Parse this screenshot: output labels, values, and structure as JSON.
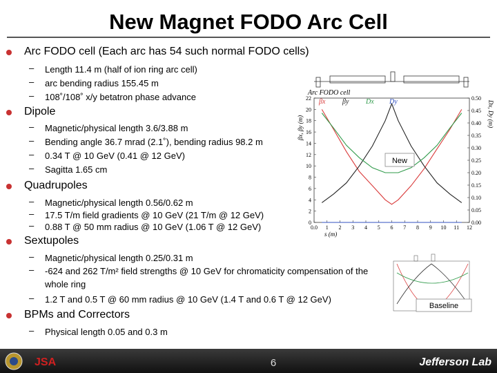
{
  "title": "New Magnet FODO Arc Cell",
  "bullets": [
    {
      "text": "Arc FODO cell (Each arc has 54 such normal FODO cells)",
      "items": [
        "Length 11.4 m (half of ion ring arc cell)",
        "arc bending radius 155.45 m",
        "108˚/108˚ x/y betatron phase advance"
      ]
    },
    {
      "text": "Dipole",
      "items": [
        "Magnetic/physical length 3.6/3.88 m",
        "Bending angle 36.7 mrad (2.1˚), bending radius 98.2 m",
        "0.34 T @ 10 GeV (0.41 @ 12 GeV)",
        "Sagitta 1.65 cm"
      ]
    },
    {
      "text": "Quadrupoles",
      "items": [
        "Magnetic/physical length 0.56/0.62 m",
        "17.5 T/m field gradients @ 10 GeV (21 T/m @ 12 GeV)",
        "0.88 T @ 50 mm radius @ 10 GeV (1.06 T @ 12 GeV)"
      ]
    },
    {
      "text": "Sextupoles",
      "items": [
        "Magnetic/physical length 0.25/0.31 m",
        "-624 and 262 T/m² field strengths @ 10 GeV for chromaticity compensation of the whole ring",
        "1.2 T and 0.5 T @ 60 mm radius @ 10 GeV (1.4 T and 0.6 T @ 12 GeV)"
      ]
    },
    {
      "text": "BPMs and Correctors",
      "items": [
        "Physical length 0.05 and 0.3 m"
      ]
    }
  ],
  "figure": {
    "type": "line",
    "title": "Arc FODO cell",
    "x_label": "s (m)",
    "y_label": "βx, βy (m)",
    "y2_label": "Dx, Dy (m)",
    "badge": "New",
    "x": [
      0.6,
      1.5,
      2.5,
      3.5,
      4.5,
      5.5,
      6,
      6.5,
      7.5,
      8.5,
      9.5,
      10.5,
      11.4
    ],
    "series": [
      {
        "name": "βx",
        "color": "#d93a3a",
        "values": [
          20,
          16.5,
          12.5,
          9,
          6.5,
          4,
          3.2,
          4,
          6.5,
          9.5,
          13,
          16.5,
          20
        ]
      },
      {
        "name": "βy",
        "color": "#222222",
        "values": [
          3.5,
          5,
          7,
          10,
          13.5,
          18,
          21,
          18,
          13.5,
          10,
          7,
          5,
          3.5
        ]
      },
      {
        "name": "Dx",
        "color": "#2f9a4a",
        "axis": "y2",
        "values": [
          0.44,
          0.38,
          0.31,
          0.26,
          0.22,
          0.2,
          0.2,
          0.2,
          0.22,
          0.26,
          0.31,
          0.38,
          0.44
        ]
      },
      {
        "name": "Dy",
        "color": "#3050c0",
        "axis": "y2",
        "values": [
          0,
          0,
          0,
          0,
          0,
          0,
          0,
          0,
          0,
          0,
          0,
          0,
          0
        ]
      }
    ],
    "xlim": [
      0,
      12
    ],
    "ylim": [
      0,
      22
    ],
    "y2lim": [
      0,
      0.5
    ],
    "xticks": [
      {
        "value": 0,
        "label": "0.0"
      },
      1,
      2,
      3,
      4,
      5,
      6,
      7,
      8,
      9,
      10,
      11,
      12
    ],
    "yticks": [
      0,
      2,
      4,
      6,
      8,
      10,
      12,
      14,
      16,
      18,
      20,
      22
    ],
    "y2ticks": [
      {
        "value": 0,
        "label": "0.00"
      },
      {
        "value": 0.05,
        "label": "0.05"
      },
      {
        "value": 0.1,
        "label": "0.10"
      },
      {
        "value": 0.15,
        "label": "0.15"
      },
      {
        "value": 0.2,
        "label": "0.20"
      },
      {
        "value": 0.25,
        "label": "0.25"
      },
      {
        "value": 0.3,
        "label": "0.30"
      },
      {
        "value": 0.35,
        "label": "0.35"
      },
      {
        "value": 0.4,
        "label": "0.40"
      },
      {
        "value": 0.45,
        "label": "0.45"
      },
      {
        "value": 0.5,
        "label": "0.50"
      }
    ]
  },
  "baseline_figure": {
    "badge": "Baseline"
  },
  "footer": {
    "page": "6",
    "logo_left": "JSA",
    "logo_right": "Jefferson Lab"
  }
}
